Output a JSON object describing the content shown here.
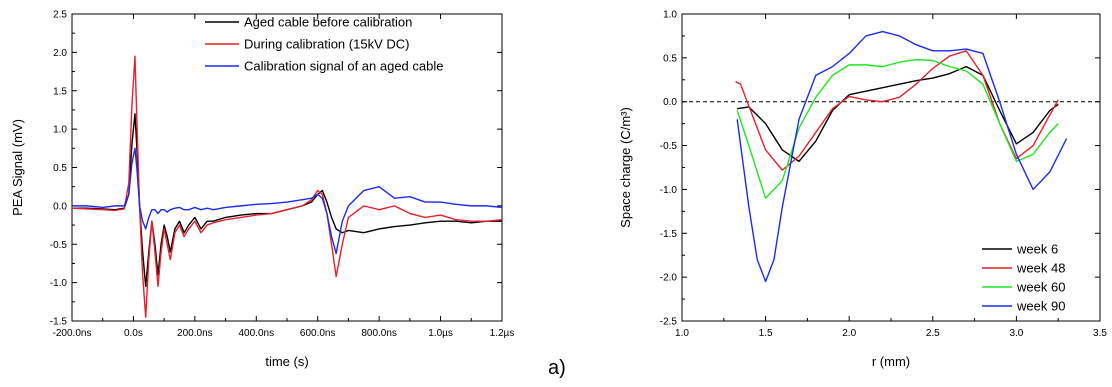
{
  "panel_label": "a)",
  "colors": {
    "black": "#000000",
    "red": "#e8202a",
    "blue": "#1b2cf0",
    "green": "#1ee61e"
  },
  "chart_data": [
    {
      "type": "line",
      "xlabel": "time (s)",
      "ylabel": "PEA Signal (mV)",
      "xlim": [
        -200,
        1200
      ],
      "ylim": [
        -1.5,
        2.5
      ],
      "x_unit": "ns",
      "x_tick_values": [
        -200,
        0,
        200,
        400,
        600,
        800,
        1000,
        1200
      ],
      "x_tick_labels": [
        "-200.0ns",
        "0.0s",
        "200.0ns",
        "400.0ns",
        "600.0ns",
        "800.0ns",
        "1.0µs",
        "1.2µs"
      ],
      "y_tick_values": [
        -1.5,
        -1.0,
        -0.5,
        0.0,
        0.5,
        1.0,
        1.5,
        2.0,
        2.5
      ],
      "y_tick_labels": [
        "-1.5",
        "-1.0",
        "-0.5",
        "0.0",
        "0.5",
        "1.0",
        "1.5",
        "2.0",
        "2.5"
      ],
      "legend_position": "top-right",
      "grid": false,
      "series": [
        {
          "name": "Aged cable before calibration",
          "color": "#000000",
          "x": [
            -200,
            -150,
            -100,
            -60,
            -30,
            -15,
            -5,
            5,
            12,
            20,
            30,
            40,
            50,
            60,
            70,
            80,
            90,
            100,
            110,
            120,
            135,
            150,
            165,
            180,
            200,
            220,
            240,
            260,
            300,
            350,
            400,
            450,
            500,
            550,
            580,
            600,
            615,
            630,
            645,
            660,
            680,
            700,
            750,
            800,
            850,
            900,
            950,
            1000,
            1050,
            1100,
            1150,
            1200
          ],
          "y": [
            -0.03,
            -0.03,
            -0.04,
            -0.05,
            -0.03,
            0.15,
            0.8,
            1.2,
            0.7,
            0.0,
            -0.6,
            -1.05,
            -0.6,
            -0.2,
            -0.5,
            -0.9,
            -0.5,
            -0.25,
            -0.4,
            -0.6,
            -0.3,
            -0.2,
            -0.35,
            -0.25,
            -0.15,
            -0.3,
            -0.2,
            -0.2,
            -0.15,
            -0.12,
            -0.1,
            -0.1,
            -0.05,
            0.0,
            0.05,
            0.15,
            0.2,
            0.05,
            -0.15,
            -0.3,
            -0.35,
            -0.32,
            -0.35,
            -0.3,
            -0.27,
            -0.25,
            -0.22,
            -0.2,
            -0.2,
            -0.22,
            -0.2,
            -0.2
          ]
        },
        {
          "name": "During calibration (15kV DC)",
          "color": "#e8202a",
          "x": [
            -200,
            -150,
            -100,
            -60,
            -30,
            -15,
            -5,
            5,
            12,
            20,
            30,
            40,
            50,
            60,
            70,
            80,
            90,
            100,
            110,
            120,
            135,
            150,
            165,
            180,
            200,
            220,
            240,
            260,
            300,
            350,
            400,
            450,
            500,
            550,
            580,
            600,
            615,
            630,
            645,
            660,
            680,
            700,
            750,
            800,
            850,
            900,
            950,
            1000,
            1050,
            1100,
            1150,
            1200
          ],
          "y": [
            -0.03,
            -0.04,
            -0.05,
            -0.06,
            -0.04,
            0.3,
            1.3,
            1.95,
            1.0,
            0.0,
            -0.9,
            -1.45,
            -0.7,
            -0.2,
            -0.6,
            -1.05,
            -0.6,
            -0.3,
            -0.5,
            -0.7,
            -0.35,
            -0.25,
            -0.4,
            -0.3,
            -0.2,
            -0.35,
            -0.25,
            -0.22,
            -0.18,
            -0.15,
            -0.12,
            -0.1,
            -0.05,
            0.0,
            0.08,
            0.2,
            0.15,
            -0.1,
            -0.5,
            -0.92,
            -0.5,
            -0.15,
            0.0,
            -0.05,
            0.0,
            -0.1,
            -0.15,
            -0.12,
            -0.18,
            -0.2,
            -0.2,
            -0.18
          ]
        },
        {
          "name": "Calibration signal of an aged cable",
          "color": "#1b2cf0",
          "x": [
            -200,
            -150,
            -100,
            -60,
            -30,
            -15,
            -5,
            5,
            12,
            20,
            30,
            40,
            50,
            60,
            70,
            80,
            90,
            100,
            110,
            120,
            135,
            150,
            165,
            180,
            200,
            220,
            240,
            260,
            300,
            350,
            400,
            450,
            500,
            550,
            580,
            600,
            615,
            630,
            645,
            660,
            680,
            700,
            750,
            800,
            850,
            900,
            950,
            1000,
            1050,
            1100,
            1150,
            1200
          ],
          "y": [
            0.0,
            0.0,
            -0.02,
            0.0,
            0.0,
            0.15,
            0.55,
            0.75,
            0.45,
            0.0,
            -0.2,
            -0.3,
            -0.15,
            -0.05,
            -0.05,
            -0.1,
            -0.05,
            -0.05,
            -0.08,
            -0.05,
            -0.03,
            -0.02,
            -0.05,
            -0.05,
            -0.02,
            -0.05,
            -0.03,
            -0.05,
            -0.02,
            0.0,
            0.02,
            0.03,
            0.05,
            0.08,
            0.1,
            0.15,
            0.1,
            -0.1,
            -0.4,
            -0.62,
            -0.2,
            0.0,
            0.2,
            0.25,
            0.1,
            0.12,
            0.05,
            0.05,
            0.02,
            0.0,
            0.0,
            -0.02
          ]
        }
      ]
    },
    {
      "type": "line",
      "xlabel": "r (mm)",
      "ylabel": "Space charge (C/m³)",
      "xlim": [
        1.0,
        3.5
      ],
      "ylim": [
        -2.5,
        1.0
      ],
      "x_tick_values": [
        1.0,
        1.5,
        2.0,
        2.5,
        3.0,
        3.5
      ],
      "x_tick_labels": [
        "1.0",
        "1.5",
        "2.0",
        "2.5",
        "3.0",
        "3.5"
      ],
      "y_tick_values": [
        -2.5,
        -2.0,
        -1.5,
        -1.0,
        -0.5,
        0.0,
        0.5,
        1.0
      ],
      "y_tick_labels": [
        "-2.5",
        "-2.0",
        "-1.5",
        "-1.0",
        "-0.5",
        "0.0",
        "0.5",
        "1.0"
      ],
      "reference_line": 0.0,
      "legend_position": "bottom-right",
      "grid": false,
      "series": [
        {
          "name": "week 6",
          "color": "#000000",
          "x": [
            1.33,
            1.4,
            1.5,
            1.6,
            1.7,
            1.8,
            1.9,
            2.0,
            2.1,
            2.2,
            2.3,
            2.4,
            2.5,
            2.6,
            2.7,
            2.8,
            2.9,
            3.0,
            3.1,
            3.2,
            3.25
          ],
          "y": [
            -0.08,
            -0.06,
            -0.25,
            -0.55,
            -0.68,
            -0.45,
            -0.1,
            0.08,
            0.12,
            0.16,
            0.2,
            0.24,
            0.27,
            0.32,
            0.4,
            0.3,
            -0.1,
            -0.48,
            -0.35,
            -0.1,
            -0.03
          ]
        },
        {
          "name": "week 48",
          "color": "#e8202a",
          "x": [
            1.32,
            1.35,
            1.4,
            1.5,
            1.6,
            1.7,
            1.8,
            1.9,
            2.0,
            2.1,
            2.2,
            2.3,
            2.4,
            2.5,
            2.6,
            2.7,
            2.8,
            2.9,
            3.0,
            3.1,
            3.2,
            3.25
          ],
          "y": [
            0.23,
            0.2,
            -0.05,
            -0.55,
            -0.78,
            -0.62,
            -0.35,
            -0.08,
            0.06,
            0.02,
            0.0,
            0.05,
            0.2,
            0.38,
            0.52,
            0.58,
            0.3,
            -0.25,
            -0.65,
            -0.5,
            -0.15,
            0.02
          ]
        },
        {
          "name": "week 60",
          "color": "#1ee61e",
          "x": [
            1.33,
            1.4,
            1.5,
            1.6,
            1.7,
            1.8,
            1.9,
            2.0,
            2.1,
            2.2,
            2.3,
            2.4,
            2.5,
            2.6,
            2.7,
            2.8,
            2.9,
            3.0,
            3.1,
            3.2,
            3.25
          ],
          "y": [
            -0.1,
            -0.5,
            -1.1,
            -0.9,
            -0.3,
            0.05,
            0.3,
            0.42,
            0.42,
            0.4,
            0.45,
            0.48,
            0.47,
            0.4,
            0.35,
            0.2,
            -0.25,
            -0.68,
            -0.6,
            -0.35,
            -0.25
          ]
        },
        {
          "name": "week 90",
          "color": "#1b2cf0",
          "x": [
            1.33,
            1.4,
            1.45,
            1.5,
            1.55,
            1.6,
            1.7,
            1.8,
            1.9,
            2.0,
            2.1,
            2.2,
            2.3,
            2.4,
            2.5,
            2.6,
            2.7,
            2.8,
            2.9,
            3.0,
            3.1,
            3.2,
            3.3
          ],
          "y": [
            -0.2,
            -1.2,
            -1.8,
            -2.05,
            -1.8,
            -1.2,
            -0.2,
            0.3,
            0.4,
            0.55,
            0.75,
            0.8,
            0.75,
            0.65,
            0.58,
            0.58,
            0.6,
            0.55,
            0.0,
            -0.6,
            -1.0,
            -0.8,
            -0.42
          ]
        }
      ]
    }
  ]
}
